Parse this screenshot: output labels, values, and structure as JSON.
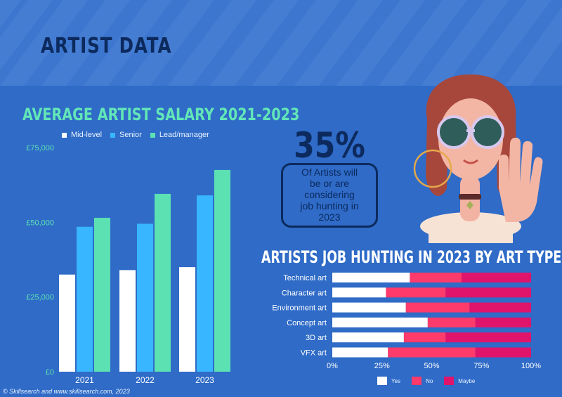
{
  "header": {
    "title": "ARTIST DATA"
  },
  "colors": {
    "background": "#2f6bc7",
    "mid_level": "#ffffff",
    "senior": "#38b6ff",
    "lead_manager": "#5ce1b3",
    "yes": "#ffffff",
    "no": "#ff3b6b",
    "maybe": "#e0146b"
  },
  "stat": {
    "value": "35%",
    "lines": [
      "Of Artists will",
      "be or are",
      "considering",
      "job hunting in",
      "2023"
    ]
  },
  "credit": "© Skillsearch and www.skillsearch.com, 2023",
  "illustration": {
    "subject": "woman-with-sunglasses-icon"
  },
  "chart_data": [
    {
      "type": "bar",
      "title": "AVERAGE ARTIST SALARY 2021-2023",
      "categories": [
        "2021",
        "2022",
        "2023"
      ],
      "series": [
        {
          "name": "Mid-level",
          "values": [
            32500,
            34000,
            35000
          ]
        },
        {
          "name": "Senior",
          "values": [
            48500,
            49500,
            59000
          ]
        },
        {
          "name": "Lead/manager",
          "values": [
            51500,
            59500,
            67500
          ]
        }
      ],
      "ylim": [
        0,
        75000
      ],
      "y_ticks": [
        0,
        25000,
        50000,
        75000
      ],
      "y_tick_labels": [
        "£0",
        "£25,000",
        "£50,000",
        "£75,000"
      ],
      "legend": "top",
      "grid": false
    },
    {
      "type": "bar",
      "orientation": "horizontal",
      "stacked": true,
      "title": "ARTISTS JOB HUNTING IN 2023 BY ART TYPE",
      "categories": [
        "Technical art",
        "Character art",
        "Environment art",
        "Concept art",
        "3D art",
        "VFX art"
      ],
      "series": [
        {
          "name": "Yes",
          "values": [
            39,
            27,
            37,
            48,
            36,
            28
          ]
        },
        {
          "name": "No",
          "values": [
            26,
            30,
            32,
            24,
            21,
            44
          ]
        },
        {
          "name": "Maybe",
          "values": [
            35,
            43,
            31,
            28,
            43,
            28
          ]
        }
      ],
      "xlim": [
        0,
        100
      ],
      "x_ticks": [
        0,
        25,
        50,
        75,
        100
      ],
      "x_tick_labels": [
        "0%",
        "25%",
        "50%",
        "75%",
        "100%"
      ],
      "legend": "bottom",
      "grid": false
    }
  ]
}
